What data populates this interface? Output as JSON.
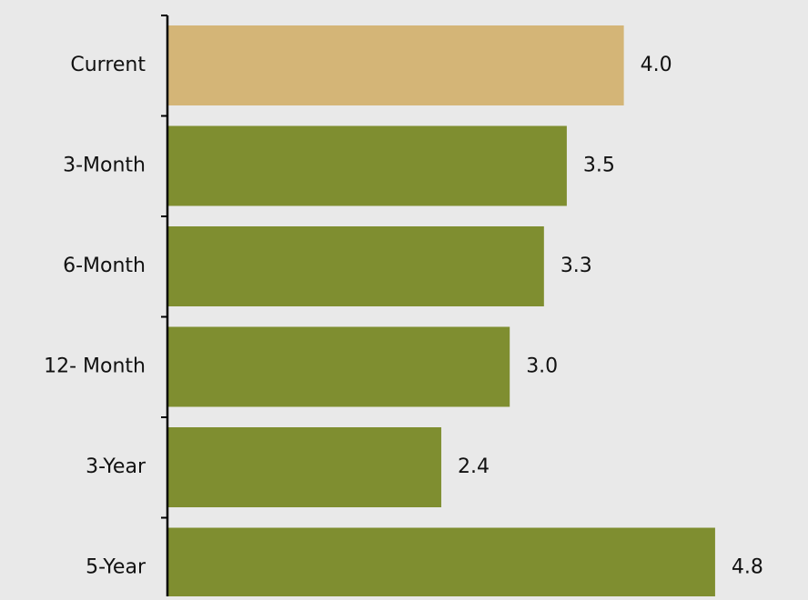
{
  "chart_data": {
    "type": "bar",
    "orientation": "horizontal",
    "categories": [
      "Current",
      "3-Month",
      "6-Month",
      "12- Month",
      "3-Year",
      "5-Year"
    ],
    "values": [
      4.0,
      3.5,
      3.3,
      3.0,
      2.4,
      4.8
    ],
    "value_labels": [
      "4.0",
      "3.5",
      "3.3",
      "3.0",
      "2.4",
      "4.8"
    ],
    "bar_colors": [
      "#d4b577",
      "#7f8e30",
      "#7f8e30",
      "#7f8e30",
      "#7f8e30",
      "#7f8e30"
    ],
    "title": "",
    "xlabel": "",
    "ylabel": "",
    "xlim": [
      0,
      4.8
    ],
    "grid": false,
    "legend": "none"
  },
  "colors": {
    "background": "#e9e9e9",
    "highlight": "#d4b577",
    "primary": "#7f8e30",
    "axis": "#000000"
  }
}
